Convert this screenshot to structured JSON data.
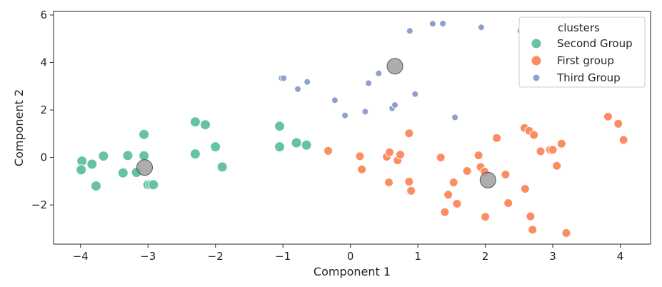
{
  "chart_data": {
    "type": "scatter",
    "xlabel": "Component 1",
    "ylabel": "Component 2",
    "xlim": [
      -4.4,
      4.45
    ],
    "ylim": [
      -3.65,
      6.15
    ],
    "xticks": [
      -4,
      -3,
      -2,
      -1,
      0,
      1,
      2,
      3,
      4
    ],
    "yticks": [
      -2,
      0,
      2,
      4,
      6
    ],
    "grid": false,
    "legend": {
      "title": "clusters",
      "placement": "top-right"
    },
    "series": [
      {
        "name": "Second Group",
        "color": "#66c2a5",
        "points": [
          [
            -3.98,
            -0.15
          ],
          [
            -3.99,
            -0.52
          ],
          [
            -3.83,
            -0.28
          ],
          [
            -3.66,
            0.06
          ],
          [
            -3.77,
            -1.2
          ],
          [
            -3.37,
            -0.65
          ],
          [
            -3.3,
            0.08
          ],
          [
            -3.17,
            -0.63
          ],
          [
            -3.06,
            0.97
          ],
          [
            -3.06,
            0.07
          ],
          [
            -3.0,
            -1.15
          ],
          [
            -2.96,
            -1.15
          ],
          [
            -2.92,
            -1.15
          ],
          [
            -2.3,
            1.5
          ],
          [
            -2.15,
            1.38
          ],
          [
            -2.3,
            0.15
          ],
          [
            -2.0,
            0.45
          ],
          [
            -1.9,
            -0.4
          ],
          [
            -1.05,
            1.32
          ],
          [
            -1.05,
            0.45
          ],
          [
            -0.8,
            0.62
          ],
          [
            -0.65,
            0.52
          ]
        ]
      },
      {
        "name": "First group",
        "color": "#fc8d62",
        "points": [
          [
            -0.33,
            0.28
          ],
          [
            0.14,
            0.05
          ],
          [
            0.17,
            -0.5
          ],
          [
            0.54,
            0.03
          ],
          [
            0.58,
            0.22
          ],
          [
            0.57,
            -1.05
          ],
          [
            0.7,
            -0.12
          ],
          [
            0.74,
            0.12
          ],
          [
            0.87,
            1.02
          ],
          [
            0.87,
            -1.02
          ],
          [
            0.9,
            -1.4
          ],
          [
            1.34,
            0.0
          ],
          [
            1.4,
            -2.3
          ],
          [
            1.45,
            -1.57
          ],
          [
            1.53,
            -1.05
          ],
          [
            1.58,
            -1.95
          ],
          [
            1.73,
            -0.57
          ],
          [
            1.9,
            0.09
          ],
          [
            1.93,
            -0.4
          ],
          [
            1.99,
            -0.6
          ],
          [
            2.0,
            -2.5
          ],
          [
            2.17,
            0.82
          ],
          [
            2.3,
            -0.72
          ],
          [
            2.34,
            -1.92
          ],
          [
            2.58,
            1.24
          ],
          [
            2.59,
            -1.32
          ],
          [
            2.65,
            1.12
          ],
          [
            2.67,
            -2.48
          ],
          [
            2.7,
            -3.04
          ],
          [
            2.72,
            0.95
          ],
          [
            2.82,
            0.26
          ],
          [
            2.96,
            0.32
          ],
          [
            3.0,
            0.32
          ],
          [
            3.06,
            -0.35
          ],
          [
            3.13,
            0.58
          ],
          [
            3.2,
            -3.18
          ],
          [
            3.82,
            1.72
          ],
          [
            3.97,
            1.42
          ],
          [
            4.05,
            0.74
          ]
        ]
      },
      {
        "name": "Third Group",
        "color": "#8da0cb",
        "points": [
          [
            -1.02,
            3.34
          ],
          [
            -0.99,
            3.34
          ],
          [
            -0.78,
            2.88
          ],
          [
            -0.64,
            3.18
          ],
          [
            -0.23,
            2.41
          ],
          [
            -0.08,
            1.77
          ],
          [
            0.22,
            1.93
          ],
          [
            0.27,
            3.13
          ],
          [
            0.42,
            3.54
          ],
          [
            0.62,
            2.07
          ],
          [
            0.66,
            2.21
          ],
          [
            0.96,
            2.67
          ],
          [
            0.88,
            5.33
          ],
          [
            1.22,
            5.63
          ],
          [
            1.37,
            5.64
          ],
          [
            1.55,
            1.69
          ],
          [
            1.94,
            5.48
          ],
          [
            2.52,
            5.33
          ]
        ]
      }
    ],
    "centroids": {
      "color": "#999999",
      "points": [
        [
          -3.05,
          -0.42
        ],
        [
          0.66,
          3.84
        ],
        [
          2.04,
          -0.95
        ]
      ]
    }
  }
}
